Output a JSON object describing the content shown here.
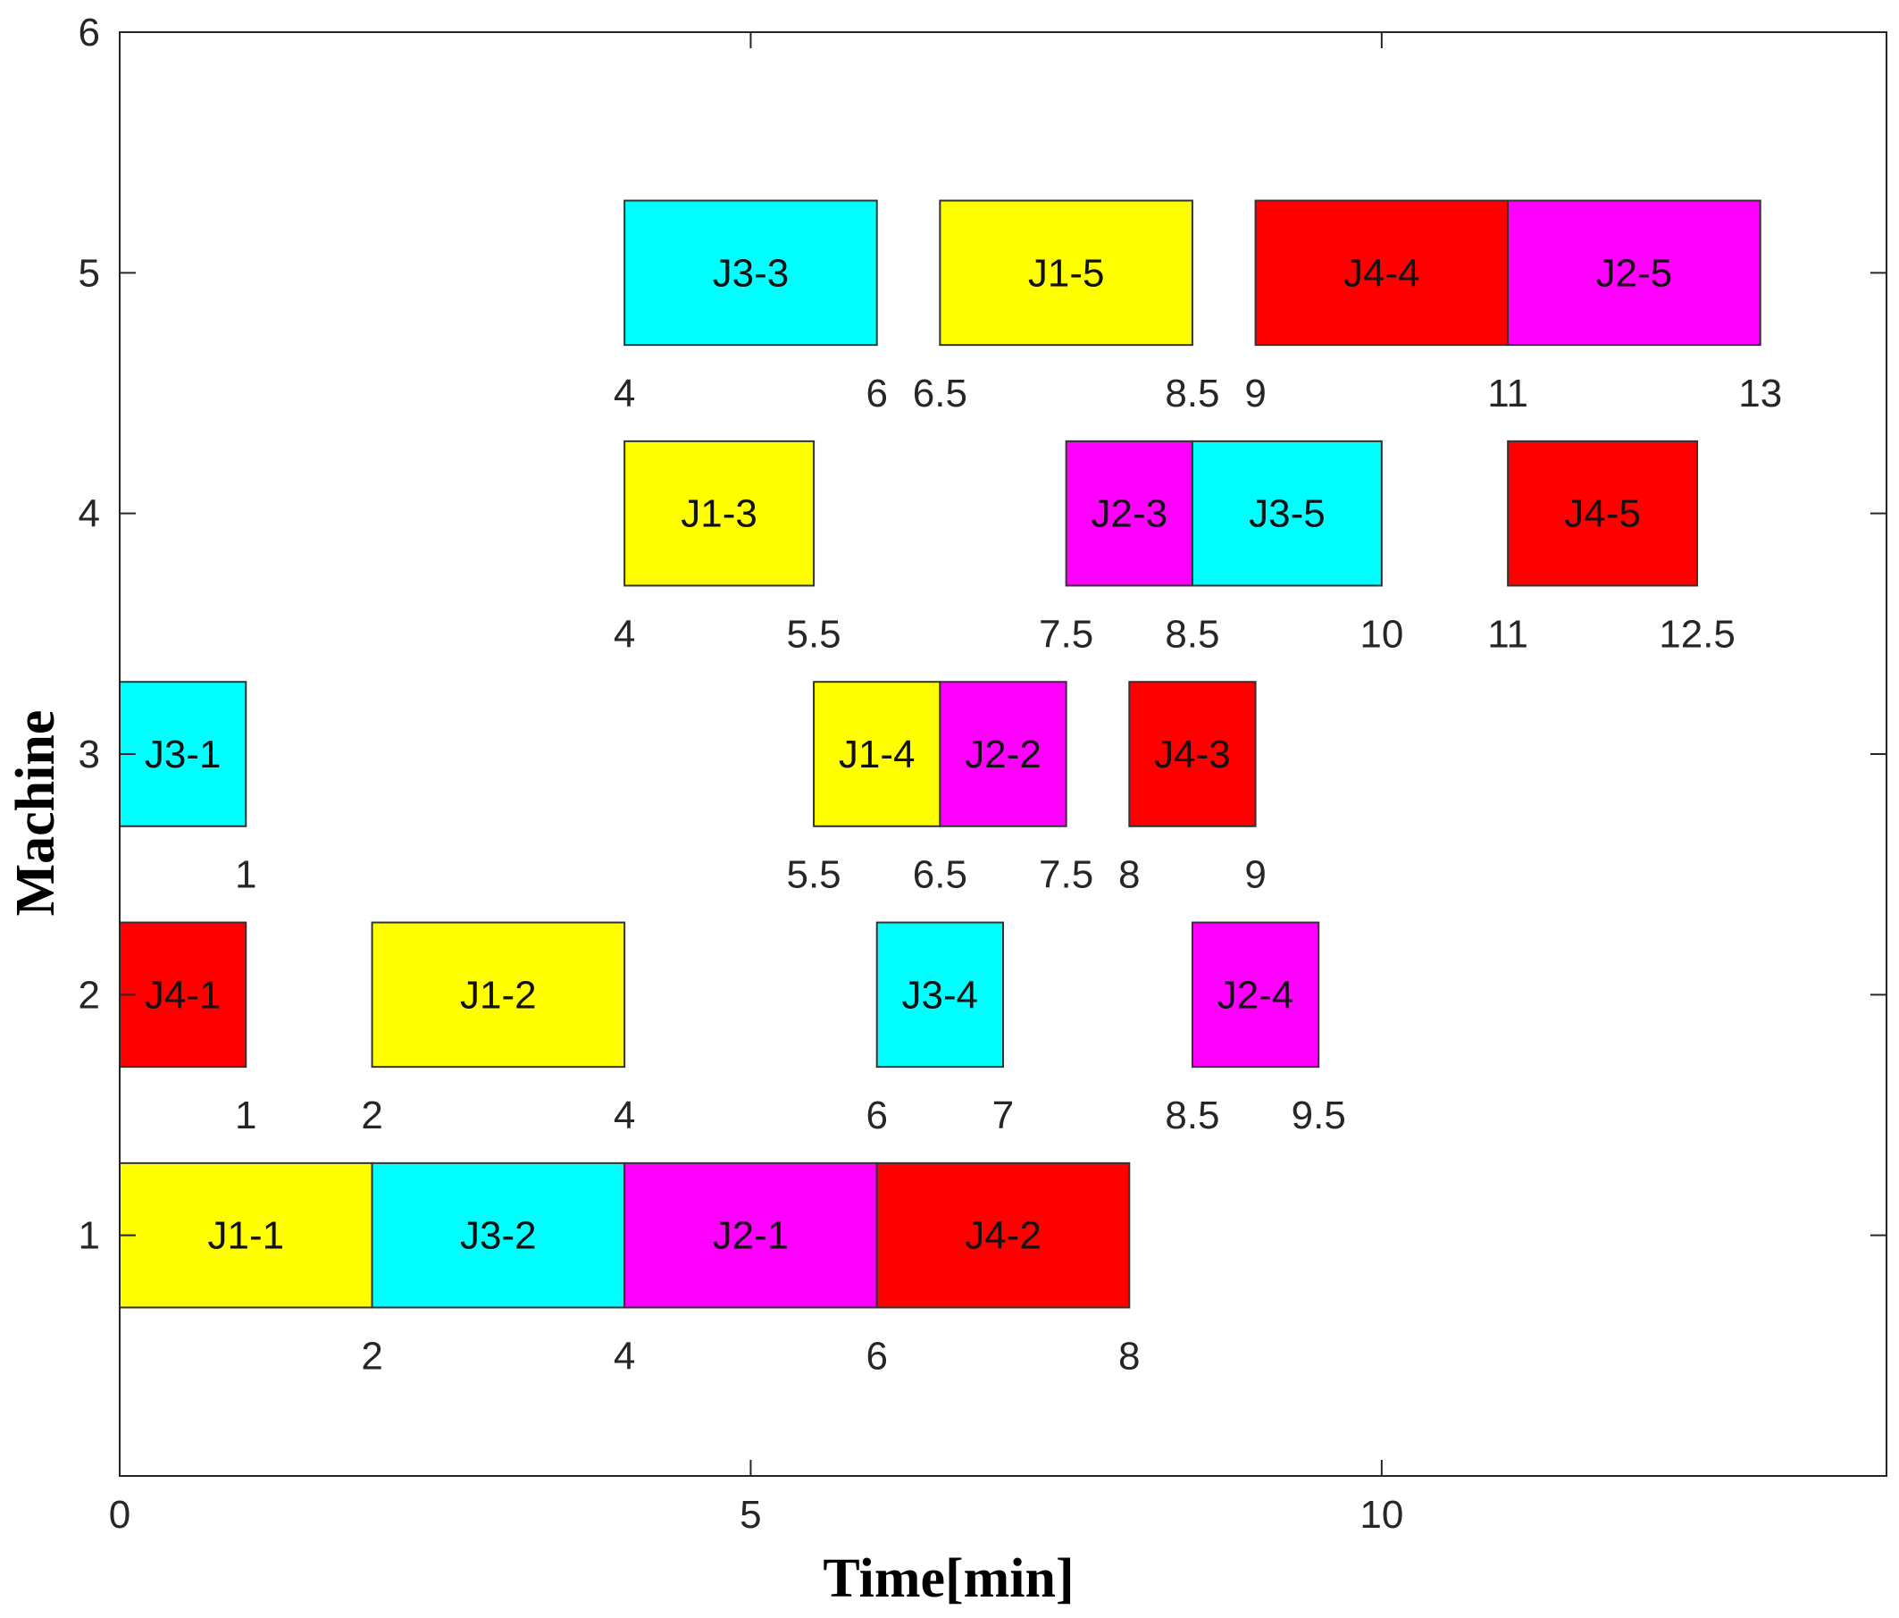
{
  "chart_data": {
    "type": "gantt",
    "title": "",
    "xlabel": "Time[min]",
    "ylabel": "Machine",
    "xlim": [
      0,
      14
    ],
    "ylim": [
      0,
      6
    ],
    "xticks": [
      0,
      5,
      10
    ],
    "yticks": [
      1,
      2,
      3,
      4,
      5,
      6
    ],
    "bar_height": 0.6,
    "colors": {
      "J1": "#ffff00",
      "J2": "#ff00ff",
      "J3": "#00ffff",
      "J4": "#ff0000"
    },
    "tasks": [
      {
        "label": "J1-1",
        "job": "J1",
        "machine": 1,
        "start": 0,
        "end": 2
      },
      {
        "label": "J3-2",
        "job": "J3",
        "machine": 1,
        "start": 2,
        "end": 4
      },
      {
        "label": "J2-1",
        "job": "J2",
        "machine": 1,
        "start": 4,
        "end": 6
      },
      {
        "label": "J4-2",
        "job": "J4",
        "machine": 1,
        "start": 6,
        "end": 8
      },
      {
        "label": "J4-1",
        "job": "J4",
        "machine": 2,
        "start": 0,
        "end": 1
      },
      {
        "label": "J1-2",
        "job": "J1",
        "machine": 2,
        "start": 2,
        "end": 4
      },
      {
        "label": "J3-4",
        "job": "J3",
        "machine": 2,
        "start": 6,
        "end": 7
      },
      {
        "label": "J2-4",
        "job": "J2",
        "machine": 2,
        "start": 8.5,
        "end": 9.5
      },
      {
        "label": "J3-1",
        "job": "J3",
        "machine": 3,
        "start": 0,
        "end": 1
      },
      {
        "label": "J1-4",
        "job": "J1",
        "machine": 3,
        "start": 5.5,
        "end": 6.5
      },
      {
        "label": "J2-2",
        "job": "J2",
        "machine": 3,
        "start": 6.5,
        "end": 7.5
      },
      {
        "label": "J4-3",
        "job": "J4",
        "machine": 3,
        "start": 8,
        "end": 9
      },
      {
        "label": "J1-3",
        "job": "J1",
        "machine": 4,
        "start": 4,
        "end": 5.5
      },
      {
        "label": "J2-3",
        "job": "J2",
        "machine": 4,
        "start": 7.5,
        "end": 8.5
      },
      {
        "label": "J3-5",
        "job": "J3",
        "machine": 4,
        "start": 8.5,
        "end": 10
      },
      {
        "label": "J4-5",
        "job": "J4",
        "machine": 4,
        "start": 11,
        "end": 12.5
      },
      {
        "label": "J3-3",
        "job": "J3",
        "machine": 5,
        "start": 4,
        "end": 6
      },
      {
        "label": "J1-5",
        "job": "J1",
        "machine": 5,
        "start": 6.5,
        "end": 8.5
      },
      {
        "label": "J4-4",
        "job": "J4",
        "machine": 5,
        "start": 9,
        "end": 11
      },
      {
        "label": "J2-5",
        "job": "J2",
        "machine": 5,
        "start": 11,
        "end": 13
      }
    ],
    "time_annotations": [
      {
        "machine": 1,
        "x": 2,
        "text": "2"
      },
      {
        "machine": 1,
        "x": 4,
        "text": "4"
      },
      {
        "machine": 1,
        "x": 6,
        "text": "6"
      },
      {
        "machine": 1,
        "x": 8,
        "text": "8"
      },
      {
        "machine": 2,
        "x": 1,
        "text": "1"
      },
      {
        "machine": 2,
        "x": 2,
        "text": "2"
      },
      {
        "machine": 2,
        "x": 4,
        "text": "4"
      },
      {
        "machine": 2,
        "x": 6,
        "text": "6"
      },
      {
        "machine": 2,
        "x": 7,
        "text": "7"
      },
      {
        "machine": 2,
        "x": 8.5,
        "text": "8.5"
      },
      {
        "machine": 2,
        "x": 9.5,
        "text": "9.5"
      },
      {
        "machine": 3,
        "x": 1,
        "text": "1"
      },
      {
        "machine": 3,
        "x": 5.5,
        "text": "5.5"
      },
      {
        "machine": 3,
        "x": 6.5,
        "text": "6.5"
      },
      {
        "machine": 3,
        "x": 7.5,
        "text": "7.5"
      },
      {
        "machine": 3,
        "x": 8,
        "text": "8"
      },
      {
        "machine": 3,
        "x": 9,
        "text": "9"
      },
      {
        "machine": 4,
        "x": 4,
        "text": "4"
      },
      {
        "machine": 4,
        "x": 5.5,
        "text": "5.5"
      },
      {
        "machine": 4,
        "x": 7.5,
        "text": "7.5"
      },
      {
        "machine": 4,
        "x": 8.5,
        "text": "8.5"
      },
      {
        "machine": 4,
        "x": 10,
        "text": "10"
      },
      {
        "machine": 4,
        "x": 11,
        "text": "11"
      },
      {
        "machine": 4,
        "x": 12.5,
        "text": "12.5"
      },
      {
        "machine": 5,
        "x": 4,
        "text": "4"
      },
      {
        "machine": 5,
        "x": 6,
        "text": "6"
      },
      {
        "machine": 5,
        "x": 6.5,
        "text": "6.5"
      },
      {
        "machine": 5,
        "x": 8.5,
        "text": "8.5"
      },
      {
        "machine": 5,
        "x": 9,
        "text": "9"
      },
      {
        "machine": 5,
        "x": 11,
        "text": "11"
      },
      {
        "machine": 5,
        "x": 13,
        "text": "13"
      }
    ]
  }
}
